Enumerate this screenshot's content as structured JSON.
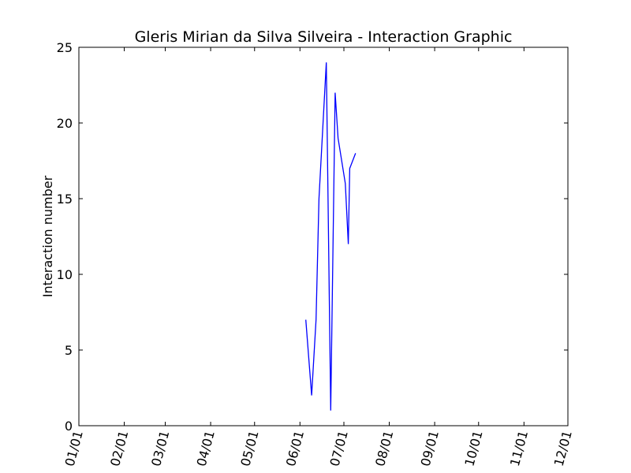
{
  "chart_data": {
    "type": "line",
    "title": "Gleris Mirian da Silva Silveira - Interaction Graphic",
    "xlabel": "",
    "ylabel": "Interaction number",
    "xlim": [
      "2014-01-01",
      "2014-12-01"
    ],
    "ylim": [
      0,
      25
    ],
    "x_ticks": [
      "2014-01-01",
      "2014-02-01",
      "2014-03-01",
      "2014-04-01",
      "2014-05-01",
      "2014-06-01",
      "2014-07-01",
      "2014-08-01",
      "2014-09-01",
      "2014-10-01",
      "2014-11-01",
      "2014-12-01"
    ],
    "x_tick_labels": [
      "01/01",
      "02/01",
      "03/01",
      "04/01",
      "05/01",
      "06/01",
      "07/01",
      "08/01",
      "09/01",
      "10/01",
      "11/01",
      "12/01"
    ],
    "y_ticks": [
      0,
      5,
      10,
      15,
      20,
      25
    ],
    "y_tick_labels": [
      "0",
      "5",
      "10",
      "15",
      "20",
      "25"
    ],
    "grid": false,
    "series": [
      {
        "color": "#0000ff",
        "x": [
          "2014-06-05",
          "2014-06-09",
          "2014-06-12",
          "2014-06-14",
          "2014-06-19",
          "2014-06-22",
          "2014-06-25",
          "2014-06-27",
          "2014-07-02",
          "2014-07-04",
          "2014-07-05",
          "2014-07-09"
        ],
        "y": [
          7,
          2,
          7,
          15,
          24,
          1,
          22,
          19,
          16,
          12,
          17,
          18
        ]
      }
    ]
  }
}
